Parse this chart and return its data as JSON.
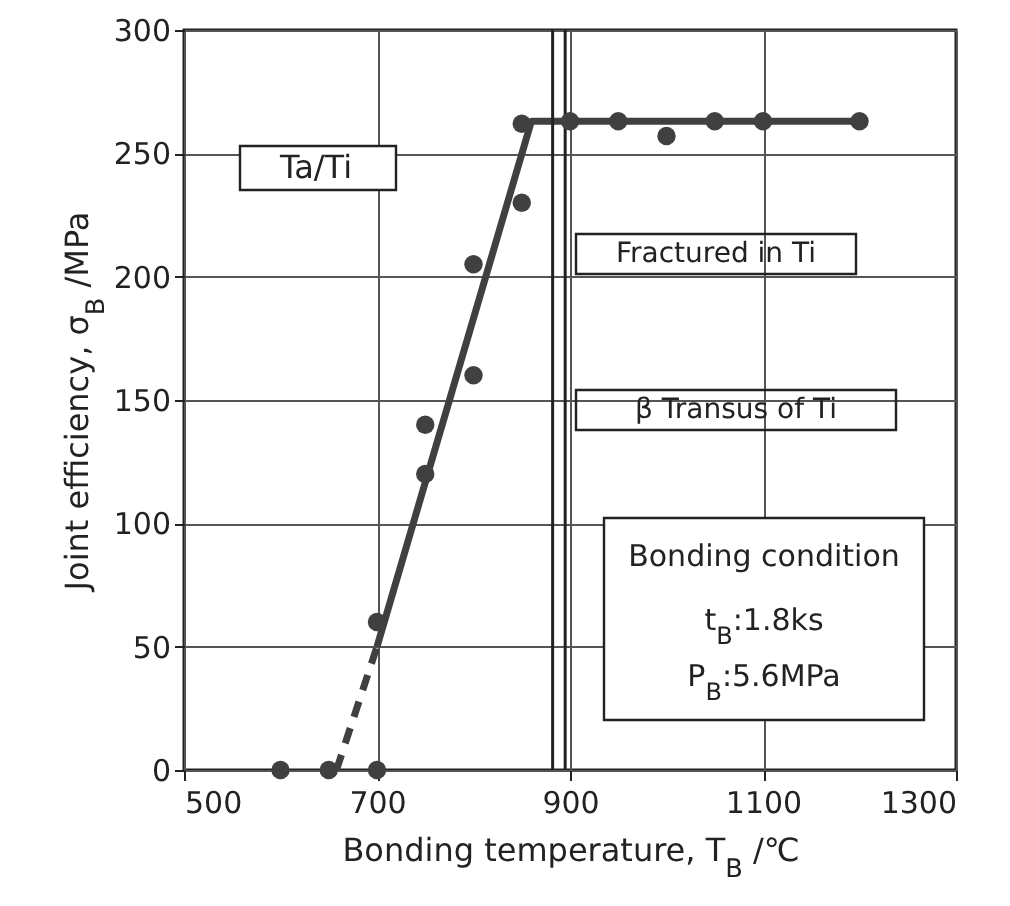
{
  "chart_data": {
    "type": "scatter",
    "xlabel": "Bonding temperature, T$_{B}$ /℃",
    "ylabel": "Joint efficiency, σ$_{B}$ /MPa",
    "xlim": [
      500,
      1300
    ],
    "xticks": [
      500,
      700,
      900,
      1100,
      1300
    ],
    "ylim": [
      0,
      300
    ],
    "yticks": [
      0,
      50,
      100,
      150,
      200,
      250,
      300
    ],
    "grid": true,
    "series": [
      {
        "marker": "circle",
        "color": "#404040",
        "x": [
          600,
          650,
          700,
          700,
          750,
          750,
          800,
          800,
          850,
          850,
          900,
          950,
          1000,
          1050,
          1100,
          1200
        ],
        "values": [
          0,
          0,
          0,
          60,
          120,
          140,
          160,
          205,
          230,
          262,
          263,
          263,
          257,
          263,
          263,
          263
        ]
      },
      {
        "type": "line",
        "line_style": "solid",
        "color": "#404040",
        "x": [
          700,
          860,
          1200
        ],
        "values": [
          50,
          263,
          263
        ]
      },
      {
        "type": "line",
        "line_style": "dashed",
        "color": "#404040",
        "x": [
          658,
          700
        ],
        "values": [
          0,
          50
        ]
      }
    ],
    "ref_lines": [
      {
        "axis": "x",
        "value": 882,
        "label": "β Transus of Ti",
        "color": "#222222"
      },
      {
        "axis": "x",
        "value": 895,
        "label": "Fractured in Ti",
        "color": "#222222"
      }
    ],
    "annotations": [
      "Ta/Ti",
      "Bonding condition",
      "t$_{B}$:1.8ks",
      "P$_{B}$:5.6MPa"
    ]
  }
}
